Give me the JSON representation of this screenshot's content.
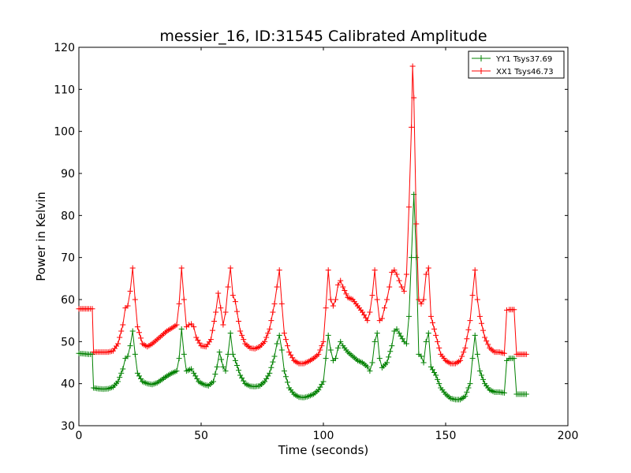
{
  "chart_data": {
    "type": "line",
    "title": "messier_16, ID:31545 Calibrated Amplitude",
    "xlabel": "Time (seconds)",
    "ylabel": "Power in Kelvin",
    "xlim": [
      0,
      200
    ],
    "ylim": [
      30,
      120
    ],
    "xticks": [
      0,
      50,
      100,
      150,
      200
    ],
    "yticks": [
      30,
      40,
      50,
      60,
      70,
      80,
      90,
      100,
      110,
      120
    ],
    "grid": false,
    "legend_position": "top-right",
    "marker": "+",
    "series": [
      {
        "name": "YY1 Tsys37.69",
        "color": "#008000",
        "points": [
          [
            0,
            47.2
          ],
          [
            2,
            47.1
          ],
          [
            4,
            47.0
          ],
          [
            5.5,
            47.0
          ],
          [
            6,
            39.0
          ],
          [
            8,
            38.8
          ],
          [
            10,
            38.7
          ],
          [
            12,
            38.8
          ],
          [
            14,
            39.2
          ],
          [
            16,
            40.5
          ],
          [
            18,
            43.5
          ],
          [
            19,
            46.0
          ],
          [
            20,
            46.5
          ],
          [
            21,
            49.0
          ],
          [
            22,
            52.5
          ],
          [
            23,
            47.0
          ],
          [
            24,
            42.5
          ],
          [
            26,
            40.5
          ],
          [
            28,
            40.0
          ],
          [
            30,
            39.8
          ],
          [
            32,
            40.2
          ],
          [
            34,
            41.0
          ],
          [
            36,
            41.8
          ],
          [
            38,
            42.5
          ],
          [
            40,
            43.0
          ],
          [
            41,
            46.0
          ],
          [
            42,
            53.0
          ],
          [
            43,
            47.0
          ],
          [
            44,
            43.0
          ],
          [
            46,
            43.5
          ],
          [
            47,
            42.5
          ],
          [
            49,
            40.5
          ],
          [
            51,
            39.8
          ],
          [
            53,
            39.5
          ],
          [
            55,
            40.5
          ],
          [
            56.5,
            44.0
          ],
          [
            57.5,
            47.5
          ],
          [
            59,
            44.0
          ],
          [
            60,
            43.0
          ],
          [
            61,
            47.0
          ],
          [
            62,
            52.0
          ],
          [
            63,
            47.0
          ],
          [
            64,
            45.5
          ],
          [
            66,
            42.0
          ],
          [
            68,
            40.0
          ],
          [
            70,
            39.4
          ],
          [
            72,
            39.3
          ],
          [
            74,
            39.5
          ],
          [
            76,
            40.5
          ],
          [
            78,
            42.5
          ],
          [
            80,
            46.5
          ],
          [
            81,
            49.5
          ],
          [
            82,
            51.5
          ],
          [
            83,
            48.0
          ],
          [
            84,
            43.0
          ],
          [
            86,
            39.0
          ],
          [
            88,
            37.5
          ],
          [
            90,
            36.8
          ],
          [
            92,
            36.7
          ],
          [
            94,
            37.0
          ],
          [
            96,
            37.5
          ],
          [
            98,
            38.5
          ],
          [
            100,
            40.5
          ],
          [
            101,
            46.0
          ],
          [
            102,
            51.5
          ],
          [
            103,
            48.0
          ],
          [
            104,
            45.5
          ],
          [
            105,
            46.0
          ],
          [
            106,
            48.5
          ],
          [
            107,
            50.0
          ],
          [
            108,
            49.0
          ],
          [
            110,
            47.5
          ],
          [
            112,
            46.5
          ],
          [
            114,
            45.5
          ],
          [
            116,
            45.0
          ],
          [
            118,
            44.0
          ],
          [
            119,
            43.0
          ],
          [
            120,
            45.0
          ],
          [
            121,
            50.0
          ],
          [
            122,
            52.0
          ],
          [
            123,
            46.0
          ],
          [
            124,
            43.8
          ],
          [
            126,
            45.0
          ],
          [
            128,
            49.0
          ],
          [
            129,
            52.5
          ],
          [
            130,
            53.0
          ],
          [
            131,
            52.0
          ],
          [
            133,
            50.0
          ],
          [
            134,
            49.5
          ],
          [
            135,
            56.0
          ],
          [
            136,
            70.0
          ],
          [
            137,
            85.0
          ],
          [
            138,
            70.0
          ],
          [
            139,
            47.0
          ],
          [
            140,
            46.5
          ],
          [
            141,
            45.0
          ],
          [
            142,
            50.0
          ],
          [
            143,
            52.0
          ],
          [
            144,
            44.0
          ],
          [
            146,
            42.0
          ],
          [
            148,
            39.0
          ],
          [
            150,
            37.5
          ],
          [
            152,
            36.5
          ],
          [
            154,
            36.2
          ],
          [
            156,
            36.2
          ],
          [
            158,
            37.0
          ],
          [
            160,
            40.0
          ],
          [
            161,
            46.0
          ],
          [
            162,
            51.5
          ],
          [
            163,
            47.0
          ],
          [
            164,
            43.0
          ],
          [
            166,
            40.0
          ],
          [
            168,
            38.5
          ],
          [
            170,
            38.0
          ],
          [
            172,
            38.0
          ],
          [
            174,
            37.8
          ],
          [
            175,
            45.5
          ],
          [
            176,
            46.0
          ],
          [
            178,
            46.0
          ],
          [
            179,
            37.5
          ],
          [
            181,
            37.5
          ],
          [
            183,
            37.5
          ]
        ]
      },
      {
        "name": "XX1 Tsys46.73",
        "color": "#ff0000",
        "points": [
          [
            0,
            57.8
          ],
          [
            2,
            57.8
          ],
          [
            4,
            57.8
          ],
          [
            5.5,
            57.8
          ],
          [
            6,
            47.5
          ],
          [
            8,
            47.5
          ],
          [
            10,
            47.5
          ],
          [
            12,
            47.5
          ],
          [
            14,
            47.8
          ],
          [
            16,
            49.5
          ],
          [
            18,
            54.0
          ],
          [
            19,
            58.0
          ],
          [
            20,
            58.5
          ],
          [
            21,
            62.0
          ],
          [
            22,
            67.5
          ],
          [
            23,
            60.0
          ],
          [
            24,
            53.5
          ],
          [
            26,
            49.5
          ],
          [
            28,
            48.8
          ],
          [
            30,
            49.5
          ],
          [
            32,
            50.5
          ],
          [
            34,
            51.5
          ],
          [
            36,
            52.5
          ],
          [
            38,
            53.2
          ],
          [
            40,
            54.0
          ],
          [
            41,
            59.0
          ],
          [
            42,
            67.5
          ],
          [
            43,
            60.0
          ],
          [
            44,
            53.5
          ],
          [
            45,
            54.0
          ],
          [
            46,
            54.2
          ],
          [
            47,
            53.5
          ],
          [
            48,
            51.0
          ],
          [
            50,
            49.0
          ],
          [
            52,
            48.8
          ],
          [
            54,
            50.5
          ],
          [
            56,
            57.0
          ],
          [
            57,
            61.5
          ],
          [
            58,
            58.0
          ],
          [
            59,
            54.0
          ],
          [
            60,
            57.0
          ],
          [
            61,
            63.0
          ],
          [
            62,
            67.5
          ],
          [
            63,
            61.0
          ],
          [
            64,
            59.5
          ],
          [
            66,
            52.5
          ],
          [
            68,
            49.5
          ],
          [
            70,
            48.5
          ],
          [
            72,
            48.3
          ],
          [
            74,
            48.8
          ],
          [
            76,
            50.0
          ],
          [
            78,
            53.0
          ],
          [
            80,
            59.0
          ],
          [
            81,
            63.0
          ],
          [
            82,
            67.0
          ],
          [
            83,
            59.0
          ],
          [
            84,
            52.0
          ],
          [
            86,
            47.5
          ],
          [
            88,
            45.5
          ],
          [
            90,
            44.8
          ],
          [
            92,
            44.8
          ],
          [
            94,
            45.3
          ],
          [
            96,
            46.0
          ],
          [
            98,
            47.0
          ],
          [
            100,
            50.0
          ],
          [
            101,
            58.0
          ],
          [
            102,
            67.0
          ],
          [
            103,
            60.0
          ],
          [
            104,
            58.5
          ],
          [
            105,
            60.0
          ],
          [
            106,
            63.5
          ],
          [
            107,
            64.5
          ],
          [
            108,
            63.0
          ],
          [
            110,
            60.5
          ],
          [
            112,
            60.0
          ],
          [
            114,
            58.5
          ],
          [
            116,
            57.0
          ],
          [
            118,
            55.0
          ],
          [
            119,
            57.0
          ],
          [
            120,
            61.0
          ],
          [
            121,
            67.0
          ],
          [
            122,
            60.0
          ],
          [
            123,
            55.0
          ],
          [
            124,
            55.5
          ],
          [
            125,
            58.0
          ],
          [
            126,
            60.0
          ],
          [
            127,
            63.0
          ],
          [
            128,
            66.5
          ],
          [
            129,
            67.0
          ],
          [
            130,
            66.0
          ],
          [
            131,
            64.5
          ],
          [
            132,
            63.0
          ],
          [
            133,
            62.0
          ],
          [
            134,
            66.0
          ],
          [
            135,
            82.0
          ],
          [
            136,
            101.0
          ],
          [
            136.5,
            115.5
          ],
          [
            137,
            108.0
          ],
          [
            138,
            78.0
          ],
          [
            139,
            60.0
          ],
          [
            140,
            59.0
          ],
          [
            141,
            60.0
          ],
          [
            142,
            66.0
          ],
          [
            143,
            67.5
          ],
          [
            144,
            56.0
          ],
          [
            146,
            51.5
          ],
          [
            148,
            47.0
          ],
          [
            150,
            45.5
          ],
          [
            152,
            44.8
          ],
          [
            154,
            44.8
          ],
          [
            156,
            45.5
          ],
          [
            158,
            48.5
          ],
          [
            160,
            55.0
          ],
          [
            161,
            61.0
          ],
          [
            162,
            67.0
          ],
          [
            163,
            60.0
          ],
          [
            164,
            56.0
          ],
          [
            166,
            51.0
          ],
          [
            168,
            48.5
          ],
          [
            170,
            47.5
          ],
          [
            172,
            47.5
          ],
          [
            174,
            47.2
          ],
          [
            175,
            57.5
          ],
          [
            176,
            57.6
          ],
          [
            178,
            57.6
          ],
          [
            179,
            47.0
          ],
          [
            181,
            47.0
          ],
          [
            183,
            47.0
          ]
        ]
      }
    ]
  }
}
